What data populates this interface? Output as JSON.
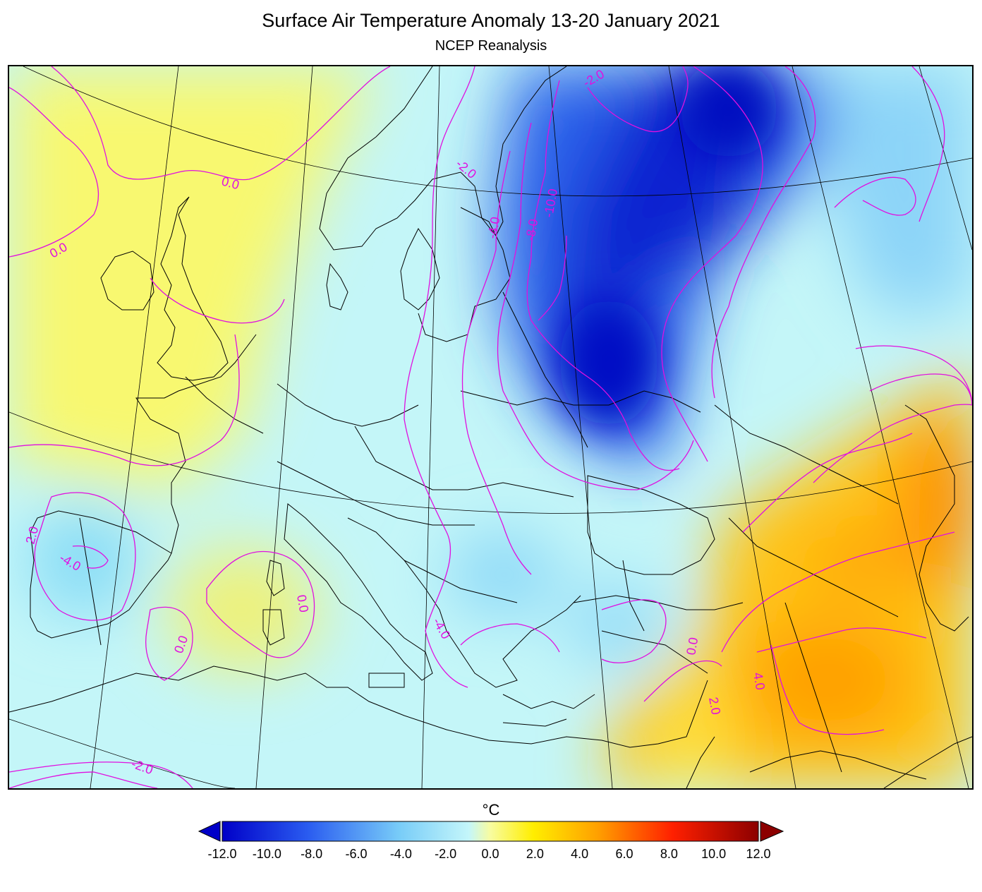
{
  "title": "Surface Air Temperature Anomaly 13-20 January 2021",
  "subtitle": "NCEP Reanalysis",
  "colorbar": {
    "unit": "°C",
    "ticks": [
      "-12.0",
      "-10.0",
      "-8.0",
      "-6.0",
      "-4.0",
      "-2.0",
      "0.0",
      "2.0",
      "4.0",
      "6.0",
      "8.0",
      "10.0",
      "12.0"
    ],
    "range": [
      -12,
      12
    ]
  },
  "contour_labels": [
    "0.0",
    "0.0",
    "-2.0",
    "-2.0",
    "-4.0",
    "-8.0",
    "-10.0",
    "2.0",
    "-4.0",
    "0.0",
    "0.0",
    "-4.0",
    "0.0",
    "2.0",
    "4.0",
    "-2.0"
  ],
  "colors": {
    "contour": "#e010e0",
    "cold_strong": "#0010c8",
    "cold_mid": "#4a8cf0",
    "cold_light": "#b8f4ff",
    "warm_light": "#ffff50",
    "warm_mid": "#ffc000",
    "warm_strong": "#ff8c00"
  }
}
